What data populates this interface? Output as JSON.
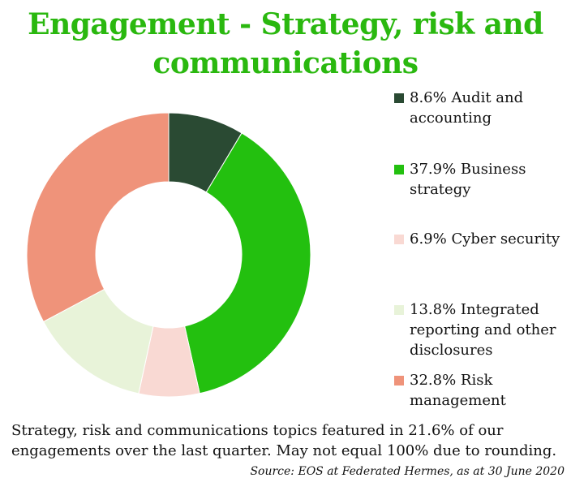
{
  "title_lines": [
    "Engagement - Strategy, risk and",
    "communications"
  ],
  "chart_data": {
    "type": "pie",
    "donut": true,
    "start_angle_deg": 0,
    "direction": "clockwise",
    "categories": [
      "Audit and accounting",
      "Business strategy",
      "Cyber security",
      "Integrated reporting and other disclosures",
      "Risk management"
    ],
    "values": [
      8.6,
      37.9,
      6.9,
      13.8,
      32.8
    ],
    "unit": "%",
    "colors": [
      "#2a4a33",
      "#23c00f",
      "#f9d9d3",
      "#e8f3d9",
      "#ef937a"
    ],
    "legend_labels": [
      "8.6% Audit and accounting",
      "37.9% Business strategy",
      "6.9% Cyber security",
      "13.8% Integrated reporting and other disclosures",
      "32.8% Risk management"
    ],
    "legend_position": "right"
  },
  "footer_text": "Strategy, risk and communications topics featured in 21.6% of our engagements over the last quarter. May not equal 100% due to rounding.",
  "source_text": "Source: EOS at Federated Hermes, as at 30 June 2020"
}
